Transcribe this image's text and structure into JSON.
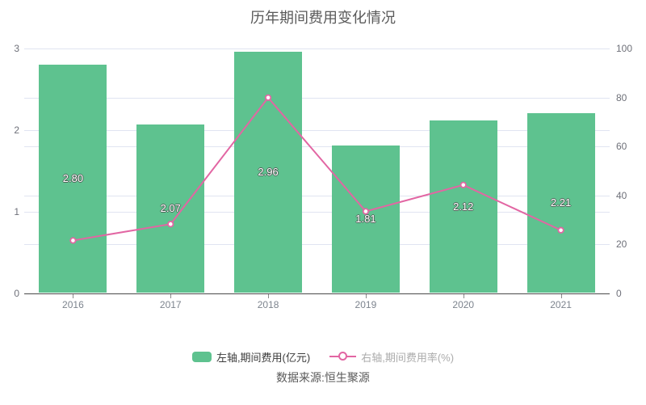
{
  "source": "数据来源:恒生聚源",
  "chart_data": {
    "type": "bar",
    "subtype": "bar+line dual axis",
    "title": "历年期间费用变化情况",
    "categories": [
      "2016",
      "2017",
      "2018",
      "2019",
      "2020",
      "2021"
    ],
    "series": [
      {
        "name": "左轴,期间费用(亿元)",
        "type": "bar",
        "axis": "left",
        "values": [
          2.8,
          2.07,
          2.96,
          1.81,
          2.12,
          2.21
        ],
        "labels": [
          "2.80",
          "2.07",
          "2.96",
          "1.81",
          "2.12",
          "2.21"
        ],
        "color": "#5ec28f"
      },
      {
        "name": "右轴,期间费用率(%)",
        "type": "line",
        "axis": "right",
        "values": [
          21.5,
          28.2,
          79.9,
          33.4,
          44.2,
          25.7
        ],
        "color": "#e266a3",
        "marker": "empty-circle"
      }
    ],
    "left_axis": {
      "min": 0,
      "max": 3,
      "ticks": [
        0,
        1,
        2,
        3
      ]
    },
    "right_axis": {
      "min": 0,
      "max": 100,
      "ticks": [
        0,
        20,
        40,
        60,
        80,
        100
      ]
    },
    "grid": true,
    "legend_position": "bottom"
  }
}
